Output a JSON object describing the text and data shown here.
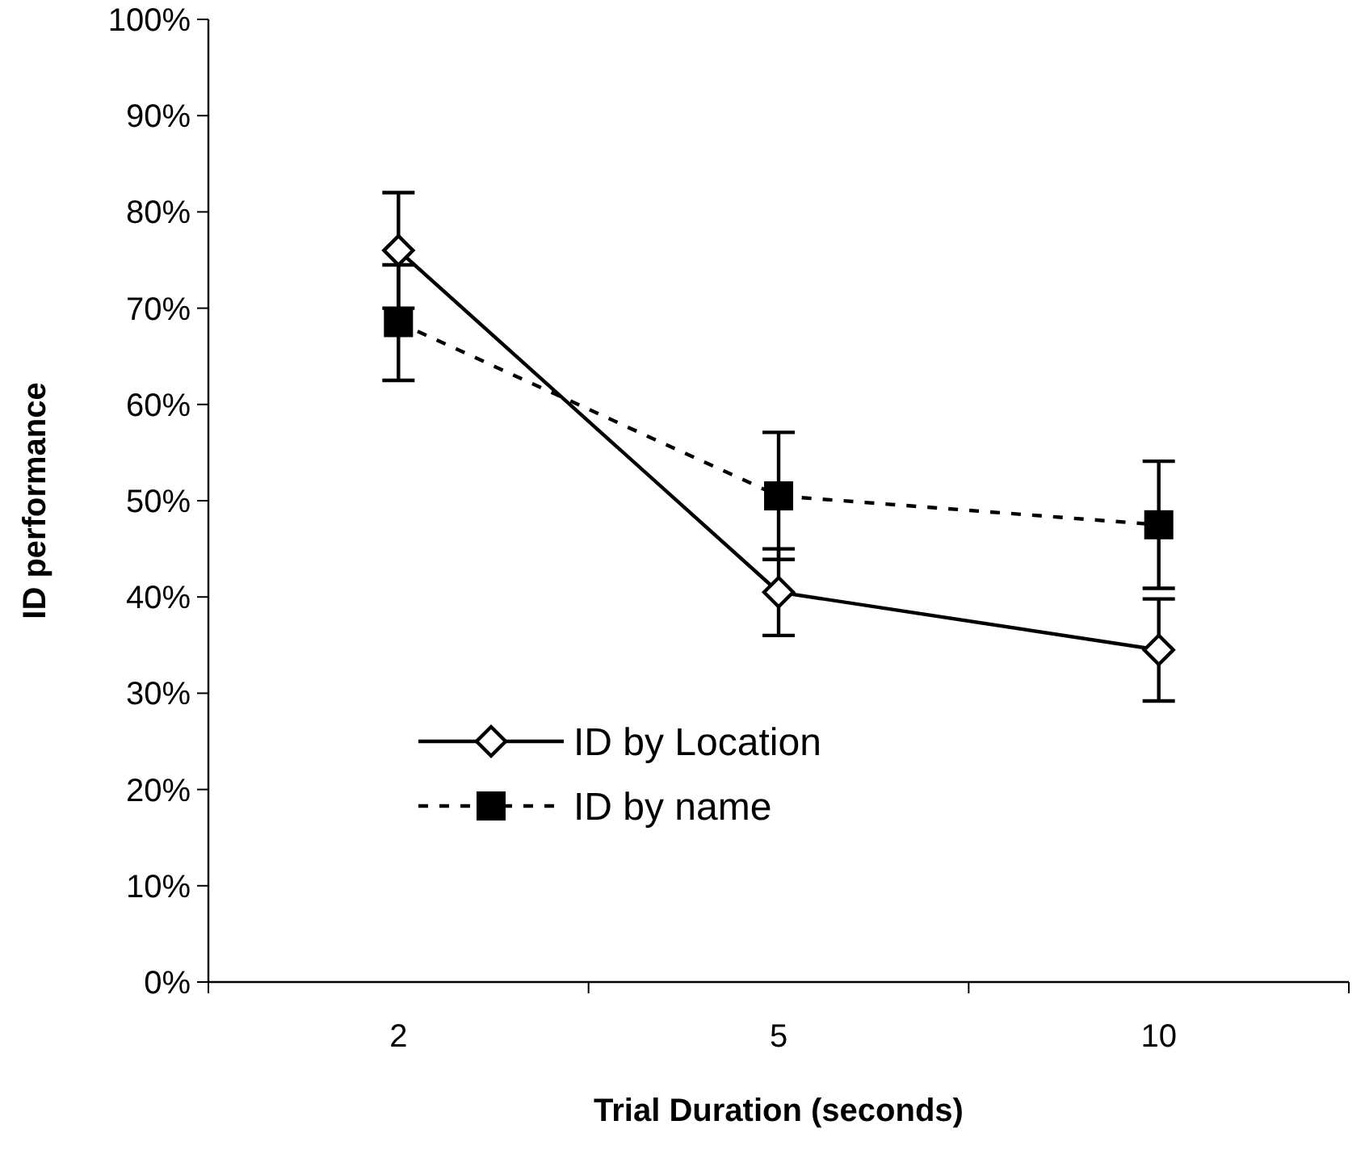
{
  "chart_data": {
    "type": "line",
    "xlabel": "Trial Duration (seconds)",
    "ylabel": "ID performance",
    "categories": [
      "2",
      "5",
      "10"
    ],
    "series": [
      {
        "name": "ID by Location",
        "color": "#000000",
        "values": [
          76,
          40.5,
          34.5
        ],
        "errors": [
          6,
          4.5,
          5.3
        ],
        "marker": "diamond",
        "line_style": "solid"
      },
      {
        "name": "ID by name",
        "color": "#000000",
        "values": [
          68.5,
          50.5,
          47.5
        ],
        "errors": [
          6,
          6.6,
          6.6
        ],
        "marker": "square",
        "line_style": "dashed"
      }
    ],
    "ylim": [
      0,
      100
    ],
    "yticks": [
      {
        "value": 0,
        "label": "0%"
      },
      {
        "value": 10,
        "label": "10%"
      },
      {
        "value": 20,
        "label": "20%"
      },
      {
        "value": 30,
        "label": "30%"
      },
      {
        "value": 40,
        "label": "40%"
      },
      {
        "value": 50,
        "label": "50%"
      },
      {
        "value": 60,
        "label": "60%"
      },
      {
        "value": 70,
        "label": "70%"
      },
      {
        "value": 80,
        "label": "80%"
      },
      {
        "value": 90,
        "label": "90%"
      },
      {
        "value": 100,
        "label": "100%"
      }
    ],
    "grid": false,
    "legend": "bottom left"
  }
}
